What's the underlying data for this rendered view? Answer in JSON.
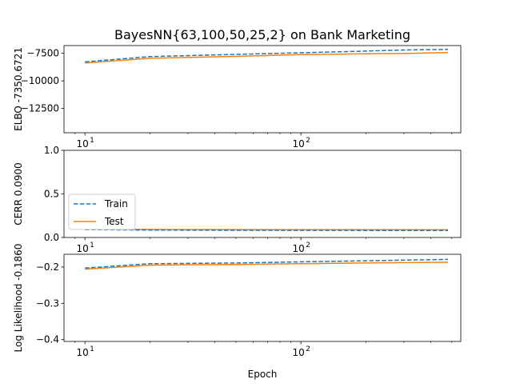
{
  "figure": {
    "title": "BayesNN{63,100,50,25,2} on Bank Marketing",
    "xlabel": "Epoch"
  },
  "legend": {
    "entries": [
      "Train",
      "Test"
    ],
    "placement": "left, middle panel"
  },
  "colors": {
    "train": "#1f77b4",
    "test": "#ff7f0e"
  },
  "chart_data": [
    {
      "type": "line",
      "ylabel": "ELBO -7350.6721",
      "xscale": "log",
      "xlim": [
        8,
        550
      ],
      "ylim": [
        -14700,
        -6800
      ],
      "yticks": [
        -12500,
        -10000,
        -7500
      ],
      "ytick_labels": [
        "−12500",
        "−10000",
        "−7500"
      ],
      "xticks": [
        10,
        100
      ],
      "xtick_labels": [
        "10^1",
        "10^2"
      ],
      "x": [
        10,
        20,
        50,
        100,
        200,
        300,
        480
      ],
      "series": [
        {
          "name": "Train",
          "style": "dashed",
          "values": [
            -8280,
            -7800,
            -7600,
            -7450,
            -7300,
            -7200,
            -7150
          ]
        },
        {
          "name": "Test",
          "style": "solid",
          "values": [
            -8380,
            -7950,
            -7780,
            -7620,
            -7550,
            -7520,
            -7420
          ]
        }
      ]
    },
    {
      "type": "line",
      "ylabel": "CERR 0.0900",
      "xscale": "log",
      "xlim": [
        8,
        550
      ],
      "ylim": [
        0,
        1
      ],
      "yticks": [
        0,
        0.5,
        1
      ],
      "ytick_labels": [
        "0.0",
        "0.5",
        "1.0"
      ],
      "xticks": [
        10,
        100
      ],
      "xtick_labels": [
        "10^1",
        "10^2"
      ],
      "x": [
        10,
        20,
        50,
        100,
        200,
        300,
        480
      ],
      "series": [
        {
          "name": "Train",
          "style": "dashed",
          "values": [
            0.09,
            0.085,
            0.083,
            0.082,
            0.081,
            0.08,
            0.08
          ]
        },
        {
          "name": "Test",
          "style": "solid",
          "values": [
            0.095,
            0.092,
            0.091,
            0.09,
            0.09,
            0.09,
            0.09
          ]
        }
      ]
    },
    {
      "type": "line",
      "ylabel": "Log Likelihood -0.1860",
      "xscale": "log",
      "xlim": [
        8,
        550
      ],
      "ylim": [
        -0.405,
        -0.165
      ],
      "yticks": [
        -0.4,
        -0.3,
        -0.2
      ],
      "ytick_labels": [
        "−0.4",
        "−0.3",
        "−0.2"
      ],
      "xticks": [
        10,
        100
      ],
      "xtick_labels": [
        "10^1",
        "10^2"
      ],
      "x": [
        10,
        20,
        50,
        100,
        200,
        300,
        480
      ],
      "series": [
        {
          "name": "Train",
          "style": "dashed",
          "values": [
            -0.203,
            -0.191,
            -0.189,
            -0.186,
            -0.183,
            -0.181,
            -0.179
          ]
        },
        {
          "name": "Test",
          "style": "solid",
          "values": [
            -0.206,
            -0.195,
            -0.193,
            -0.191,
            -0.189,
            -0.188,
            -0.187
          ]
        }
      ]
    }
  ]
}
